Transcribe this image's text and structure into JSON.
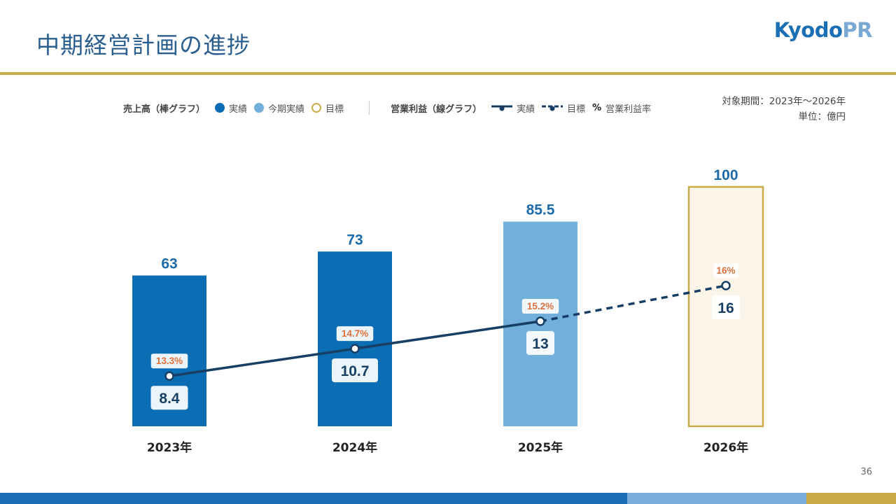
{
  "header": {
    "title": "中期経営計画の進捗",
    "logo_part1": "Kyodo",
    "logo_part2": "PR"
  },
  "legend": {
    "sales_group": "売上高（棒グラフ）",
    "sales_actual": "実績",
    "sales_current": "今期実績",
    "sales_target": "目標",
    "profit_group": "営業利益（線グラフ）",
    "profit_actual": "実績",
    "profit_target": "目標",
    "margin_symbol": "%",
    "margin_label": "営業利益率"
  },
  "meta": {
    "period": "対象期間：2023年〜2026年",
    "unit": "単位：億円"
  },
  "page_number": "36",
  "colors": {
    "actual": "#0b6eb5",
    "current": "#72afda",
    "target_border": "#c9ab4a",
    "target_fill": "#faf5e8",
    "line": "#173f66",
    "margin_text": "#e0703a",
    "value_text": "#1d6aa8"
  },
  "chart_data": {
    "type": "bar",
    "categories": [
      "2023年",
      "2024年",
      "2025年",
      "2026年"
    ],
    "series": [
      {
        "name": "売上高",
        "values": [
          63,
          73,
          85.5,
          100
        ],
        "value_labels": [
          "63",
          "73",
          "85.5",
          "100"
        ],
        "status": [
          "実績",
          "実績",
          "今期実績",
          "目標"
        ]
      },
      {
        "name": "営業利益",
        "type": "line",
        "values": [
          8.4,
          10.7,
          13,
          16
        ],
        "value_labels": [
          "8.4",
          "10.7",
          "13",
          "16"
        ],
        "status": [
          "実績",
          "実績",
          "実績",
          "目標"
        ]
      },
      {
        "name": "営業利益率",
        "values": [
          13.3,
          14.7,
          15.2,
          16
        ],
        "value_labels": [
          "13.3%",
          "14.7%",
          "15.2%",
          "16%"
        ]
      }
    ],
    "ylim": [
      0,
      100
    ],
    "grid": false
  }
}
